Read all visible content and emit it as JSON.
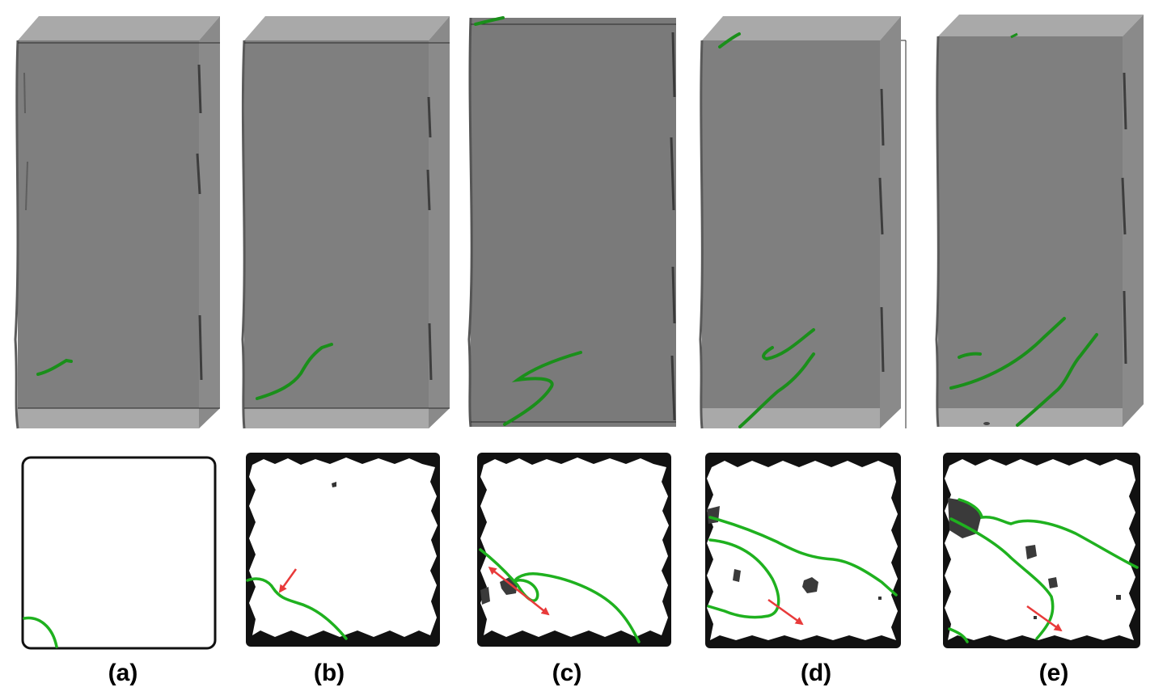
{
  "figure": {
    "panels": [
      {
        "id": "a",
        "label": "(a)"
      },
      {
        "id": "b",
        "label": "(b)"
      },
      {
        "id": "c",
        "label": "(c)"
      },
      {
        "id": "d",
        "label": "(d)"
      },
      {
        "id": "e",
        "label": "(e)"
      }
    ]
  },
  "colors": {
    "volume_face": "#7f7f7f",
    "volume_cap": "#a8a8a8",
    "crack_line": "#1fb11f",
    "crack_3d": "#1a8f1a",
    "arrow": "#e83a3a",
    "border_dark": "#111111",
    "void": "#3a3a3a"
  }
}
